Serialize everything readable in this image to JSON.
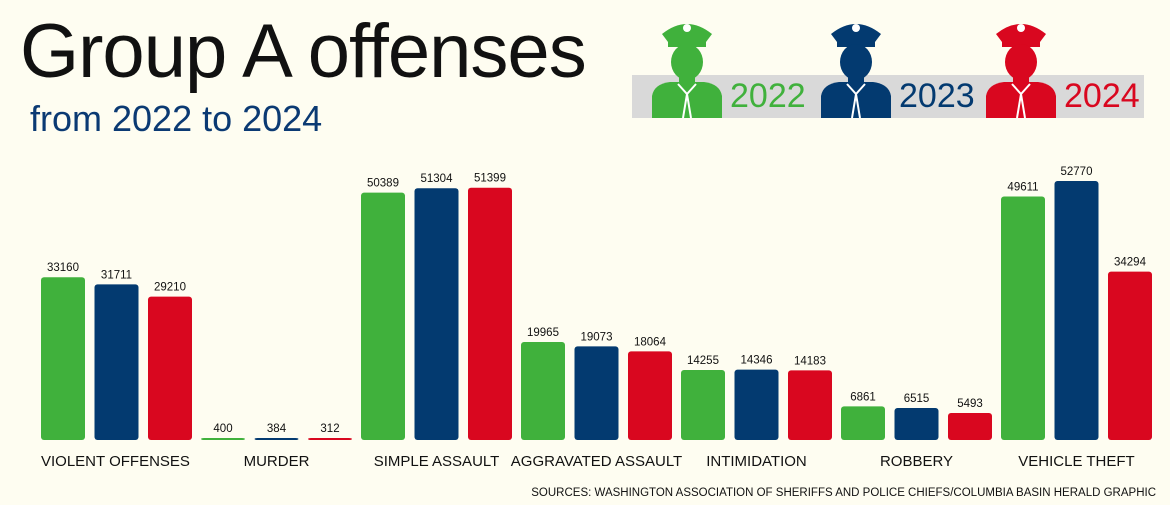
{
  "header": {
    "title": "Group A offenses",
    "subtitle": "from 2022 to 2024"
  },
  "colors": {
    "2022": "#40b13c",
    "2023": "#033a70",
    "2024": "#d9071f",
    "background": "#fefdf1"
  },
  "legend": [
    {
      "year": "2022",
      "icon": "police-officer-icon"
    },
    {
      "year": "2023",
      "icon": "police-officer-icon"
    },
    {
      "year": "2024",
      "icon": "police-officer-icon"
    }
  ],
  "chart_data": {
    "type": "bar",
    "title": "Group A offenses",
    "subtitle": "from 2022 to 2024",
    "categories": [
      "VIOLENT OFFENSES",
      "MURDER",
      "SIMPLE ASSAULT",
      "AGGRAVATED ASSAULT",
      "INTIMIDATION",
      "ROBBERY",
      "VEHICLE THEFT"
    ],
    "series": [
      {
        "name": "2022",
        "values": [
          33160,
          400,
          50389,
          19965,
          14255,
          6861,
          49611
        ]
      },
      {
        "name": "2023",
        "values": [
          31711,
          384,
          51304,
          19073,
          14346,
          6515,
          52770
        ]
      },
      {
        "name": "2024",
        "values": [
          29210,
          312,
          51399,
          18064,
          14183,
          5493,
          34294
        ]
      }
    ],
    "ylim": [
      0,
      52770
    ],
    "grid": false,
    "legend_position": "top-right",
    "data_labels": true
  },
  "footer": {
    "source": "SOURCES: WASHINGTON ASSOCIATION OF SHERIFFS AND POLICE CHIEFS/COLUMBIA BASIN HERALD GRAPHIC"
  }
}
